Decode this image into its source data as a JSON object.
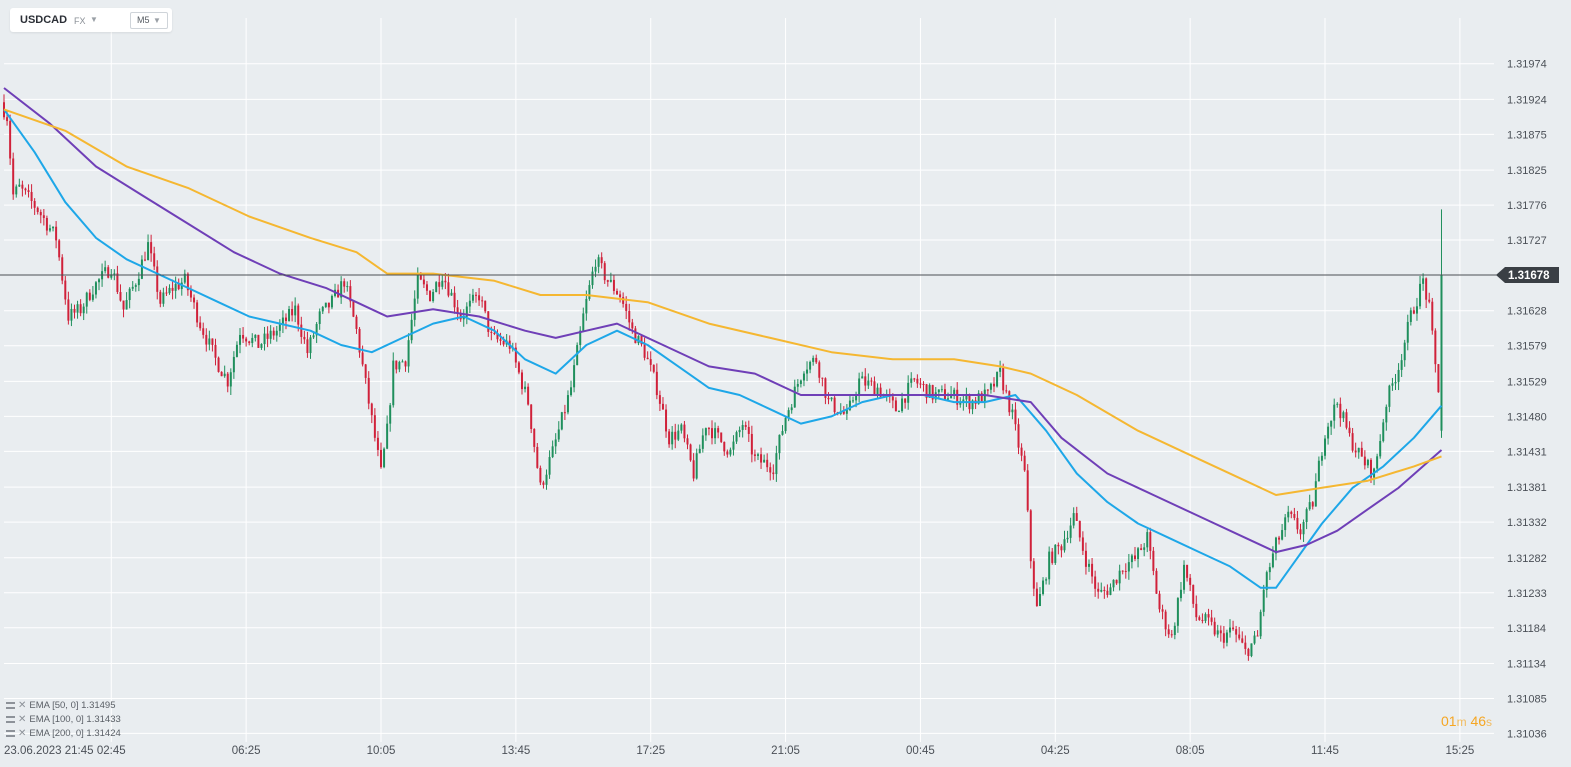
{
  "header": {
    "symbol": "USDCAD",
    "market": "FX",
    "timeframe": "M5"
  },
  "countdown": {
    "minutes": "01",
    "minutes_unit": "m",
    "seconds": "46",
    "seconds_unit": "s"
  },
  "indicators": [
    {
      "label": "EMA  [50,  0]  1.31495",
      "color": "#1ea7e8"
    },
    {
      "label": "EMA  [100,  0]  1.31433",
      "color": "#6f3fb7"
    },
    {
      "label": "EMA  [200,  0]  1.31424",
      "color": "#f5b731"
    }
  ],
  "colors": {
    "up": "#1f8f5c",
    "down": "#d0213a",
    "background": "#e9edf0",
    "price_line": "#4a4f55"
  },
  "chart_data": {
    "type": "candlestick",
    "symbol": "USDCAD",
    "timeframe": "M5",
    "current_price": 1.31678,
    "current_price_label": "1.31678",
    "y_ticks": [
      "1.31974",
      "1.31924",
      "1.31875",
      "1.31825",
      "1.31776",
      "1.31727",
      "1.31678",
      "1.31628",
      "1.31579",
      "1.31529",
      "1.31480",
      "1.31431",
      "1.31381",
      "1.31332",
      "1.31282",
      "1.31233",
      "1.31184",
      "1.31134",
      "1.31085",
      "1.31036"
    ],
    "ylim": [
      1.31024,
      1.32038
    ],
    "x_ticks": [
      "23.06.2023  21:45",
      "02:45",
      "06:25",
      "10:05",
      "13:45",
      "17:25",
      "21:05",
      "00:45",
      "04:25",
      "08:05",
      "11:45",
      "15:25"
    ],
    "x_tick_index": [
      0,
      35,
      79,
      123,
      167,
      211,
      255,
      299,
      343,
      387,
      431,
      475
    ],
    "ema_series": [
      {
        "name": "EMA [50, 0]",
        "color": "#1ea7e8",
        "values": [
          [
            0,
            1.3191
          ],
          [
            10,
            1.3185
          ],
          [
            20,
            1.3178
          ],
          [
            30,
            1.3173
          ],
          [
            40,
            1.317
          ],
          [
            50,
            1.3168
          ],
          [
            60,
            1.3166
          ],
          [
            70,
            1.3164
          ],
          [
            80,
            1.3162
          ],
          [
            90,
            1.3161
          ],
          [
            100,
            1.316
          ],
          [
            110,
            1.3158
          ],
          [
            120,
            1.3157
          ],
          [
            130,
            1.3159
          ],
          [
            140,
            1.3161
          ],
          [
            150,
            1.3162
          ],
          [
            160,
            1.316
          ],
          [
            170,
            1.3156
          ],
          [
            180,
            1.3154
          ],
          [
            190,
            1.3158
          ],
          [
            200,
            1.316
          ],
          [
            210,
            1.3158
          ],
          [
            220,
            1.3155
          ],
          [
            230,
            1.3152
          ],
          [
            240,
            1.3151
          ],
          [
            250,
            1.3149
          ],
          [
            260,
            1.3147
          ],
          [
            270,
            1.3148
          ],
          [
            280,
            1.315
          ],
          [
            290,
            1.3151
          ],
          [
            300,
            1.3151
          ],
          [
            310,
            1.315
          ],
          [
            320,
            1.315
          ],
          [
            330,
            1.3151
          ],
          [
            340,
            1.3146
          ],
          [
            350,
            1.314
          ],
          [
            360,
            1.3136
          ],
          [
            370,
            1.3133
          ],
          [
            380,
            1.3131
          ],
          [
            390,
            1.3129
          ],
          [
            400,
            1.3127
          ],
          [
            410,
            1.3124
          ],
          [
            415,
            1.3124
          ],
          [
            420,
            1.3127
          ],
          [
            430,
            1.3133
          ],
          [
            440,
            1.3138
          ],
          [
            450,
            1.3141
          ],
          [
            460,
            1.3145
          ],
          [
            469,
            1.31495
          ]
        ]
      },
      {
        "name": "EMA [100, 0]",
        "color": "#6f3fb7",
        "values": [
          [
            0,
            1.3194
          ],
          [
            15,
            1.3189
          ],
          [
            30,
            1.3183
          ],
          [
            45,
            1.3179
          ],
          [
            60,
            1.3175
          ],
          [
            75,
            1.3171
          ],
          [
            90,
            1.3168
          ],
          [
            105,
            1.3166
          ],
          [
            115,
            1.3164
          ],
          [
            125,
            1.3162
          ],
          [
            140,
            1.3163
          ],
          [
            155,
            1.3162
          ],
          [
            170,
            1.316
          ],
          [
            180,
            1.3159
          ],
          [
            190,
            1.316
          ],
          [
            200,
            1.3161
          ],
          [
            215,
            1.3158
          ],
          [
            230,
            1.3155
          ],
          [
            245,
            1.3154
          ],
          [
            260,
            1.3151
          ],
          [
            275,
            1.3151
          ],
          [
            290,
            1.3151
          ],
          [
            305,
            1.3151
          ],
          [
            320,
            1.3151
          ],
          [
            335,
            1.315
          ],
          [
            345,
            1.3145
          ],
          [
            360,
            1.314
          ],
          [
            375,
            1.3137
          ],
          [
            390,
            1.3134
          ],
          [
            405,
            1.3131
          ],
          [
            415,
            1.3129
          ],
          [
            425,
            1.313
          ],
          [
            435,
            1.3132
          ],
          [
            445,
            1.3135
          ],
          [
            455,
            1.3138
          ],
          [
            469,
            1.31433
          ]
        ]
      },
      {
        "name": "EMA [200, 0]",
        "color": "#f5b731",
        "values": [
          [
            0,
            1.3191
          ],
          [
            20,
            1.3188
          ],
          [
            40,
            1.3183
          ],
          [
            60,
            1.318
          ],
          [
            80,
            1.3176
          ],
          [
            100,
            1.3173
          ],
          [
            115,
            1.3171
          ],
          [
            125,
            1.3168
          ],
          [
            140,
            1.3168
          ],
          [
            160,
            1.3167
          ],
          [
            175,
            1.3165
          ],
          [
            190,
            1.3165
          ],
          [
            210,
            1.3164
          ],
          [
            230,
            1.3161
          ],
          [
            250,
            1.3159
          ],
          [
            270,
            1.3157
          ],
          [
            290,
            1.3156
          ],
          [
            310,
            1.3156
          ],
          [
            325,
            1.3155
          ],
          [
            335,
            1.3154
          ],
          [
            350,
            1.3151
          ],
          [
            370,
            1.3146
          ],
          [
            390,
            1.3142
          ],
          [
            405,
            1.3139
          ],
          [
            415,
            1.3137
          ],
          [
            430,
            1.3138
          ],
          [
            445,
            1.3139
          ],
          [
            460,
            1.3141
          ],
          [
            469,
            1.31424
          ]
        ]
      }
    ],
    "price_path": [
      [
        0,
        1.3192
      ],
      [
        2,
        1.319
      ],
      [
        4,
        1.3179
      ],
      [
        6,
        1.318
      ],
      [
        12,
        1.3177
      ],
      [
        18,
        1.3173
      ],
      [
        22,
        1.3162
      ],
      [
        26,
        1.3163
      ],
      [
        30,
        1.3166
      ],
      [
        36,
        1.3169
      ],
      [
        40,
        1.3163
      ],
      [
        44,
        1.3167
      ],
      [
        48,
        1.3172
      ],
      [
        52,
        1.3164
      ],
      [
        56,
        1.3166
      ],
      [
        60,
        1.3167
      ],
      [
        65,
        1.3161
      ],
      [
        70,
        1.3156
      ],
      [
        74,
        1.3153
      ],
      [
        78,
        1.316
      ],
      [
        84,
        1.3158
      ],
      [
        90,
        1.316
      ],
      [
        96,
        1.3163
      ],
      [
        100,
        1.3157
      ],
      [
        104,
        1.3162
      ],
      [
        108,
        1.3164
      ],
      [
        112,
        1.3167
      ],
      [
        116,
        1.316
      ],
      [
        120,
        1.315
      ],
      [
        124,
        1.314
      ],
      [
        126,
        1.3146
      ],
      [
        128,
        1.3155
      ],
      [
        132,
        1.3156
      ],
      [
        136,
        1.3167
      ],
      [
        140,
        1.3165
      ],
      [
        144,
        1.3168
      ],
      [
        150,
        1.3162
      ],
      [
        156,
        1.3165
      ],
      [
        160,
        1.3159
      ],
      [
        166,
        1.3158
      ],
      [
        172,
        1.315
      ],
      [
        176,
        1.3138
      ],
      [
        180,
        1.3143
      ],
      [
        186,
        1.3152
      ],
      [
        190,
        1.3162
      ],
      [
        194,
        1.317
      ],
      [
        198,
        1.3167
      ],
      [
        202,
        1.3165
      ],
      [
        206,
        1.316
      ],
      [
        210,
        1.3157
      ],
      [
        214,
        1.3152
      ],
      [
        218,
        1.3145
      ],
      [
        222,
        1.3146
      ],
      [
        226,
        1.314
      ],
      [
        230,
        1.3147
      ],
      [
        234,
        1.3145
      ],
      [
        238,
        1.3143
      ],
      [
        242,
        1.3147
      ],
      [
        246,
        1.3142
      ],
      [
        252,
        1.3141
      ],
      [
        256,
        1.3148
      ],
      [
        262,
        1.3155
      ],
      [
        266,
        1.3156
      ],
      [
        270,
        1.315
      ],
      [
        276,
        1.3148
      ],
      [
        280,
        1.3153
      ],
      [
        286,
        1.3152
      ],
      [
        292,
        1.3149
      ],
      [
        298,
        1.3153
      ],
      [
        304,
        1.3151
      ],
      [
        310,
        1.3151
      ],
      [
        316,
        1.315
      ],
      [
        322,
        1.3151
      ],
      [
        326,
        1.3154
      ],
      [
        330,
        1.3148
      ],
      [
        334,
        1.314
      ],
      [
        336,
        1.3128
      ],
      [
        338,
        1.3121
      ],
      [
        342,
        1.3128
      ],
      [
        346,
        1.313
      ],
      [
        350,
        1.3134
      ],
      [
        354,
        1.3128
      ],
      [
        358,
        1.3123
      ],
      [
        362,
        1.3124
      ],
      [
        366,
        1.3127
      ],
      [
        370,
        1.3128
      ],
      [
        374,
        1.3131
      ],
      [
        378,
        1.3121
      ],
      [
        382,
        1.3117
      ],
      [
        386,
        1.3127
      ],
      [
        390,
        1.312
      ],
      [
        394,
        1.3119
      ],
      [
        398,
        1.3117
      ],
      [
        402,
        1.3118
      ],
      [
        406,
        1.3115
      ],
      [
        410,
        1.3117
      ],
      [
        412,
        1.3124
      ],
      [
        416,
        1.313
      ],
      [
        420,
        1.3134
      ],
      [
        424,
        1.3132
      ],
      [
        428,
        1.3136
      ],
      [
        432,
        1.3146
      ],
      [
        436,
        1.315
      ],
      [
        440,
        1.3145
      ],
      [
        444,
        1.3142
      ],
      [
        448,
        1.314
      ],
      [
        452,
        1.315
      ],
      [
        456,
        1.3155
      ],
      [
        460,
        1.3162
      ],
      [
        464,
        1.3167
      ],
      [
        466,
        1.3163
      ],
      [
        468,
        1.3155
      ],
      [
        469,
        1.3152
      ]
    ],
    "last_candle": {
      "open": 1.3146,
      "high": 1.3177,
      "low": 1.3145,
      "close": 1.31678
    },
    "grid": true
  }
}
